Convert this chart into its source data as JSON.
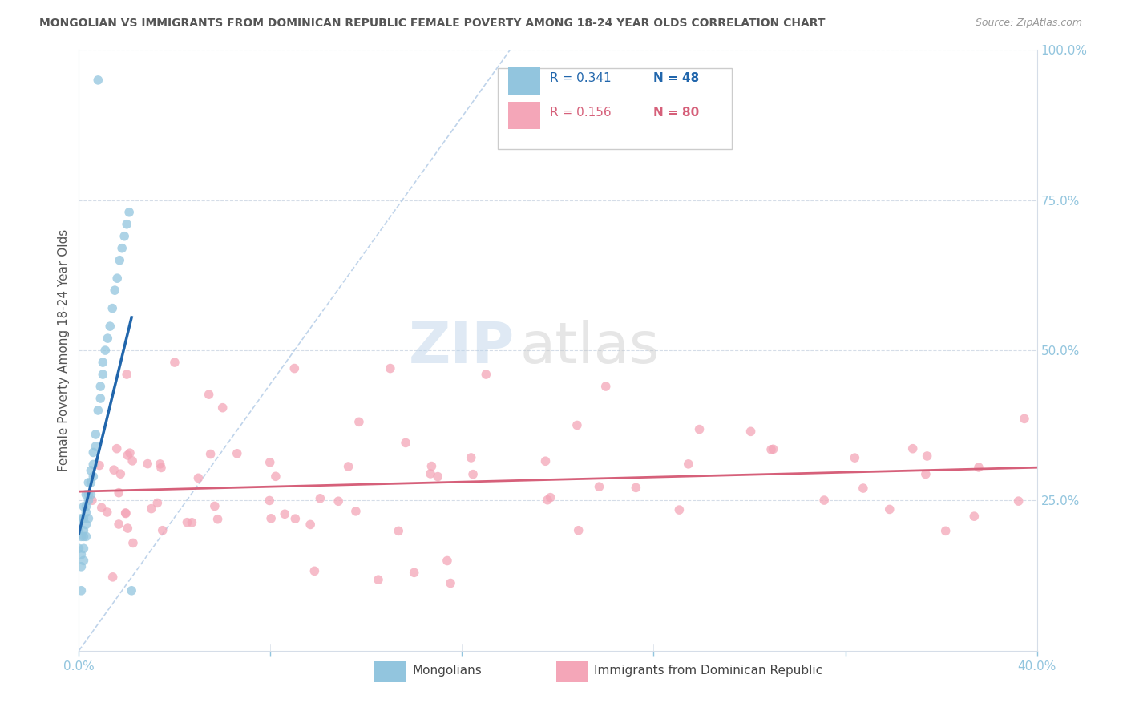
{
  "title": "MONGOLIAN VS IMMIGRANTS FROM DOMINICAN REPUBLIC FEMALE POVERTY AMONG 18-24 YEAR OLDS CORRELATION CHART",
  "source": "Source: ZipAtlas.com",
  "ylabel": "Female Poverty Among 18-24 Year Olds",
  "xlim": [
    0.0,
    0.4
  ],
  "ylim": [
    0.0,
    1.0
  ],
  "legend_r1": "R = 0.341",
  "legend_n1": "N = 48",
  "legend_r2": "R = 0.156",
  "legend_n2": "N = 80",
  "blue_color": "#92c5de",
  "pink_color": "#f4a6b8",
  "blue_line_color": "#2166ac",
  "pink_line_color": "#d6607a",
  "diag_color": "#b8cfe8",
  "watermark_zip": "ZIP",
  "watermark_atlas": "atlas",
  "grid_color": "#d5dde8",
  "tick_color": "#92c5de",
  "title_color": "#555555",
  "source_color": "#999999",
  "ylabel_color": "#555555"
}
